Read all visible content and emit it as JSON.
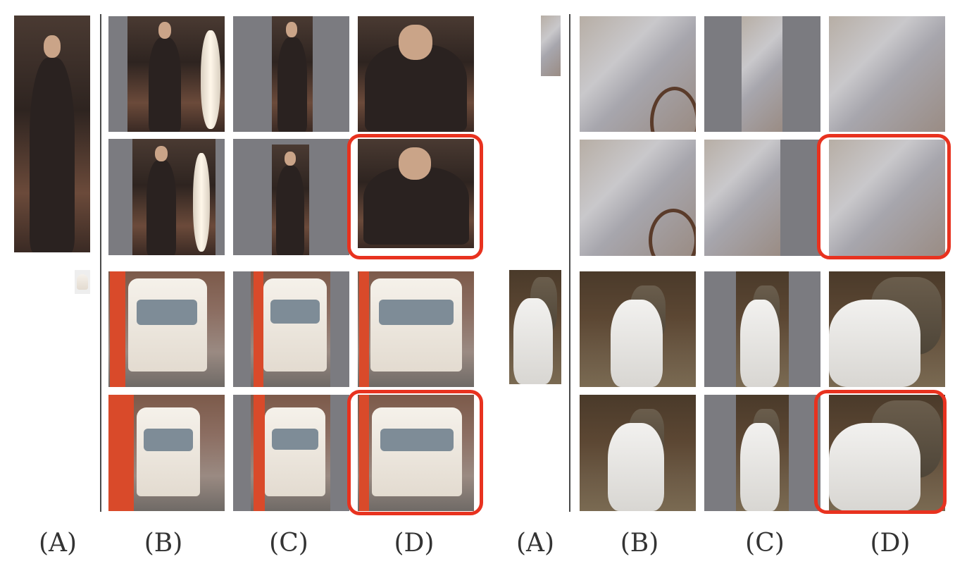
{
  "labels": [
    "(A)",
    "(B)",
    "(C)",
    "(D)",
    "(A)",
    "(B)",
    "(C)",
    "(D)"
  ]
}
